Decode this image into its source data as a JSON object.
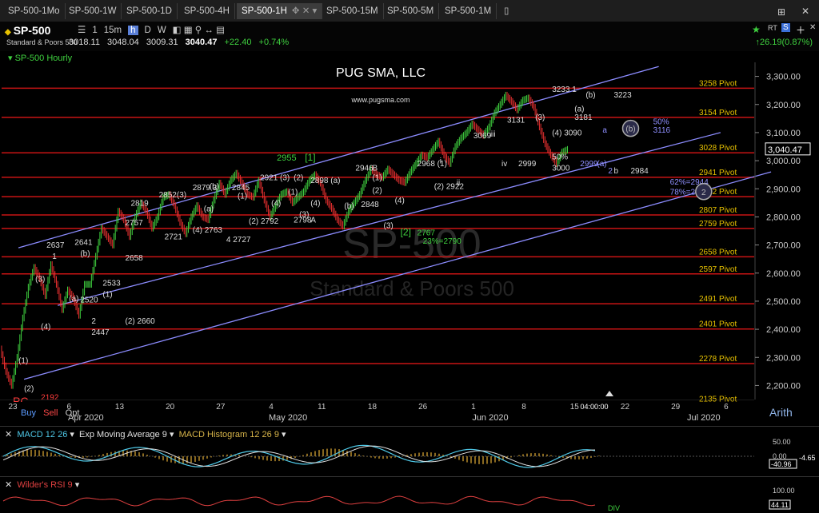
{
  "tabs": [
    {
      "label": "SP-500-1Mo",
      "active": false
    },
    {
      "label": "SP-500-1W",
      "active": false
    },
    {
      "label": "SP-500-1D",
      "active": false
    },
    {
      "label": "SP-500-4H",
      "active": false
    },
    {
      "label": "SP-500-1H",
      "active": true
    },
    {
      "label": "SP-500-15M",
      "active": false
    },
    {
      "label": "SP-500-5M",
      "active": false
    },
    {
      "label": "SP-500-1M",
      "active": false
    }
  ],
  "header": {
    "symbol": "SP-500",
    "fullname": "Standard & Poors 500",
    "intervals": [
      "1",
      "15m",
      "h",
      "D",
      "W"
    ],
    "selected_interval": "h",
    "quote": {
      "open": "3018.11",
      "high": "3048.04",
      "low": "3009.31",
      "last": "3040.47",
      "change": "+22.40",
      "pct": "+0.74%"
    },
    "rt_label": "RT",
    "right_change": "26.19(0.87%)"
  },
  "chart_title_label": "SP-500 Hourly",
  "trade_buttons": {
    "buy": "Buy",
    "sell": "Sell",
    "opt": "Opt"
  },
  "scale_mode": "Arith",
  "chart_data": {
    "type": "line",
    "title": "PUG SMA, LLC",
    "subtitle": "www.pugsma.com",
    "watermark": "SP-500",
    "watermark_sub": "Standard & Poors 500",
    "last_price_label": "3,040.47",
    "ylim": [
      2150,
      3350
    ],
    "xlim": [
      0,
      134
    ],
    "yticks": [
      "2,200.00",
      "2,300.00",
      "2,400.00",
      "2,500.00",
      "2,600.00",
      "2,700.00",
      "2,800.00",
      "2,900.00",
      "3,000.00",
      "3,100.00",
      "3,200.00",
      "3,300.00"
    ],
    "ytick_values": [
      2200,
      2300,
      2400,
      2500,
      2600,
      2700,
      2800,
      2900,
      3000,
      3100,
      3200,
      3300
    ],
    "xticks": [
      {
        "x": 2,
        "label": "23"
      },
      {
        "x": 12,
        "label": "6"
      },
      {
        "x": 21,
        "label": "13"
      },
      {
        "x": 30,
        "label": "20"
      },
      {
        "x": 39,
        "label": "27"
      },
      {
        "x": 48,
        "label": "4"
      },
      {
        "x": 57,
        "label": "11"
      },
      {
        "x": 66,
        "label": "18"
      },
      {
        "x": 75,
        "label": "26"
      },
      {
        "x": 84,
        "label": "1"
      },
      {
        "x": 93,
        "label": "8"
      },
      {
        "x": 102,
        "label": "15"
      },
      {
        "x": 111,
        "label": "22"
      },
      {
        "x": 120,
        "label": "29"
      },
      {
        "x": 129,
        "label": "6"
      }
    ],
    "month_labels": [
      {
        "x": 15,
        "label": "Apr 2020"
      },
      {
        "x": 51,
        "label": "May 2020"
      },
      {
        "x": 87,
        "label": "Jun 2020"
      },
      {
        "x": 125,
        "label": "Jul 2020"
      }
    ],
    "cursor_time": "04:00:00",
    "pivots": [
      {
        "v": 3258,
        "label": "3258 Pivot"
      },
      {
        "v": 3154,
        "label": "3154 Pivot"
      },
      {
        "v": 3028,
        "label": "3028 Pivot"
      },
      {
        "v": 2941,
        "label": "2941 Pivot"
      },
      {
        "v": 2872,
        "label": "2872 Pivot"
      },
      {
        "v": 2807,
        "label": "2807 Pivot"
      },
      {
        "v": 2759,
        "label": "2759 Pivot"
      },
      {
        "v": 2658,
        "label": "2658 Pivot"
      },
      {
        "v": 2597,
        "label": "2597 Pivot"
      },
      {
        "v": 2491,
        "label": "2491 Pivot"
      },
      {
        "v": 2401,
        "label": "2401 Pivot"
      },
      {
        "v": 2278,
        "label": "2278 Pivot"
      },
      {
        "v": 2135,
        "label": "2135 Pivot"
      }
    ],
    "channel_lines": [
      {
        "x1": 3,
        "y1": 2690,
        "x2": 117,
        "y2": 3335
      },
      {
        "x1": 10,
        "y1": 2485,
        "x2": 128,
        "y2": 3100
      },
      {
        "x1": 4,
        "y1": 2222,
        "x2": 137,
        "y2": 2960
      }
    ],
    "price_path": [
      [
        0,
        2330
      ],
      [
        1,
        2250
      ],
      [
        2,
        2200
      ],
      [
        3,
        2300
      ],
      [
        4,
        2440
      ],
      [
        5,
        2550
      ],
      [
        6,
        2620
      ],
      [
        7,
        2580
      ],
      [
        8,
        2520
      ],
      [
        9,
        2630
      ],
      [
        10,
        2560
      ],
      [
        11,
        2470
      ],
      [
        12,
        2540
      ],
      [
        13,
        2510
      ],
      [
        14,
        2450
      ],
      [
        15,
        2560
      ],
      [
        16,
        2560
      ],
      [
        17,
        2660
      ],
      [
        18,
        2760
      ],
      [
        19,
        2730
      ],
      [
        20,
        2700
      ],
      [
        21,
        2820
      ],
      [
        22,
        2790
      ],
      [
        23,
        2730
      ],
      [
        24,
        2800
      ],
      [
        25,
        2850
      ],
      [
        26,
        2820
      ],
      [
        27,
        2760
      ],
      [
        28,
        2800
      ],
      [
        29,
        2870
      ],
      [
        30,
        2880
      ],
      [
        31,
        2840
      ],
      [
        32,
        2780
      ],
      [
        33,
        2740
      ],
      [
        34,
        2800
      ],
      [
        35,
        2840
      ],
      [
        36,
        2800
      ],
      [
        37,
        2790
      ],
      [
        38,
        2860
      ],
      [
        39,
        2920
      ],
      [
        40,
        2880
      ],
      [
        41,
        2930
      ],
      [
        42,
        2955
      ],
      [
        43,
        2920
      ],
      [
        44,
        2880
      ],
      [
        45,
        2870
      ],
      [
        46,
        2930
      ],
      [
        47,
        2860
      ],
      [
        48,
        2800
      ],
      [
        49,
        2840
      ],
      [
        50,
        2880
      ],
      [
        51,
        2890
      ],
      [
        52,
        2850
      ],
      [
        53,
        2870
      ],
      [
        54,
        2890
      ],
      [
        55,
        2930
      ],
      [
        56,
        2950
      ],
      [
        57,
        2920
      ],
      [
        58,
        2860
      ],
      [
        59,
        2830
      ],
      [
        60,
        2790
      ],
      [
        61,
        2767
      ],
      [
        62,
        2820
      ],
      [
        63,
        2850
      ],
      [
        64,
        2880
      ],
      [
        65,
        2930
      ],
      [
        66,
        2970
      ],
      [
        67,
        2950
      ],
      [
        68,
        2940
      ],
      [
        69,
        2970
      ],
      [
        70,
        2950
      ],
      [
        71,
        2930
      ],
      [
        72,
        2922
      ],
      [
        73,
        2960
      ],
      [
        74,
        2990
      ],
      [
        75,
        3020
      ],
      [
        76,
        3010
      ],
      [
        77,
        3040
      ],
      [
        78,
        3069
      ],
      [
        79,
        3020
      ],
      [
        80,
        2990
      ],
      [
        81,
        3050
      ],
      [
        82,
        3080
      ],
      [
        83,
        3100
      ],
      [
        84,
        3131
      ],
      [
        85,
        3110
      ],
      [
        86,
        3090
      ],
      [
        87,
        3120
      ],
      [
        88,
        3170
      ],
      [
        89,
        3200
      ],
      [
        90,
        3233
      ],
      [
        91,
        3210
      ],
      [
        92,
        3181
      ],
      [
        93,
        3215
      ],
      [
        94,
        3223
      ],
      [
        95,
        3190
      ],
      [
        96,
        3120
      ],
      [
        97,
        3060
      ],
      [
        98,
        3020
      ],
      [
        99,
        2990
      ],
      [
        100,
        3030
      ],
      [
        101,
        3040
      ]
    ],
    "annotations": [
      {
        "x": 2,
        "y": 2130,
        "text": "PC",
        "color": "#ff3b3b",
        "size": 14
      },
      {
        "x": 7,
        "y": 2148,
        "text": "2192",
        "color": "#ff3b3b",
        "size": 10
      },
      {
        "x": 4,
        "y": 2180,
        "text": "(2)",
        "color": "#ddd"
      },
      {
        "x": 3,
        "y": 2280,
        "text": "(1)",
        "color": "#ddd"
      },
      {
        "x": 7,
        "y": 2400,
        "text": "(4)",
        "color": "#ddd"
      },
      {
        "x": 6,
        "y": 2570,
        "text": "(3)",
        "color": "#ddd"
      },
      {
        "x": 8,
        "y": 2690,
        "text": "2637",
        "color": "#ddd"
      },
      {
        "x": 9,
        "y": 2650,
        "text": "1",
        "color": "#ddd"
      },
      {
        "x": 12,
        "y": 2500,
        "text": "(a)",
        "color": "#ddd"
      },
      {
        "x": 14,
        "y": 2495,
        "text": "2520",
        "color": "#ddd"
      },
      {
        "x": 13,
        "y": 2700,
        "text": "2641",
        "color": "#ddd"
      },
      {
        "x": 14,
        "y": 2660,
        "text": "(b)",
        "color": "#ddd"
      },
      {
        "x": 18,
        "y": 2555,
        "text": "2533",
        "color": "#ddd"
      },
      {
        "x": 18,
        "y": 2515,
        "text": "(1)",
        "color": "#ddd"
      },
      {
        "x": 16,
        "y": 2420,
        "text": "2",
        "color": "#ddd"
      },
      {
        "x": 16,
        "y": 2380,
        "text": "2447",
        "color": "#ddd"
      },
      {
        "x": 22,
        "y": 2420,
        "text": "(2) 2660",
        "color": "#ddd"
      },
      {
        "x": 22,
        "y": 2645,
        "text": "2658",
        "color": "#ddd"
      },
      {
        "x": 22,
        "y": 2770,
        "text": "2757",
        "color": "#ddd"
      },
      {
        "x": 23,
        "y": 2840,
        "text": "2819",
        "color": "#ddd"
      },
      {
        "x": 28,
        "y": 2870,
        "text": "2852(3)",
        "color": "#ddd"
      },
      {
        "x": 34,
        "y": 2895,
        "text": "2879 3",
        "color": "#ddd"
      },
      {
        "x": 37,
        "y": 2900,
        "text": "(b)",
        "color": "#ddd"
      },
      {
        "x": 29,
        "y": 2720,
        "text": "2721",
        "color": "#ddd"
      },
      {
        "x": 34,
        "y": 2745,
        "text": "(4) 2763",
        "color": "#ddd"
      },
      {
        "x": 36,
        "y": 2820,
        "text": "(a)",
        "color": "#ddd"
      },
      {
        "x": 40,
        "y": 2710,
        "text": "4  2727",
        "color": "#ddd"
      },
      {
        "x": 42,
        "y": 2865,
        "text": "(1)",
        "color": "#ddd"
      },
      {
        "x": 41,
        "y": 2895,
        "text": "2845",
        "color": "#ddd"
      },
      {
        "x": 46,
        "y": 2930,
        "text": "2921 (3)",
        "color": "#ddd"
      },
      {
        "x": 44,
        "y": 2775,
        "text": "(2) 2792",
        "color": "#ddd"
      },
      {
        "x": 48,
        "y": 2840,
        "text": "(4)",
        "color": "#ddd"
      },
      {
        "x": 49,
        "y": 3000,
        "text": "2955",
        "color": "#3fd13f",
        "size": 11
      },
      {
        "x": 54,
        "y": 3000,
        "text": "[1]",
        "color": "#3fd13f",
        "size": 12
      },
      {
        "x": 52,
        "y": 2930,
        "text": "(2)",
        "color": "#ddd"
      },
      {
        "x": 51,
        "y": 2880,
        "text": "(1)",
        "color": "#ddd"
      },
      {
        "x": 55,
        "y": 2920,
        "text": "2898 (a)",
        "color": "#ddd"
      },
      {
        "x": 55,
        "y": 2840,
        "text": "(4)",
        "color": "#ddd"
      },
      {
        "x": 52,
        "y": 2780,
        "text": "2798",
        "color": "#ddd"
      },
      {
        "x": 55,
        "y": 2780,
        "text": "A",
        "color": "#ddd"
      },
      {
        "x": 53,
        "y": 2800,
        "text": "(3)",
        "color": "#ddd"
      },
      {
        "x": 61,
        "y": 2830,
        "text": "(b)",
        "color": "#ddd"
      },
      {
        "x": 64,
        "y": 2835,
        "text": "2848",
        "color": "#ddd"
      },
      {
        "x": 63,
        "y": 2965,
        "text": "2946",
        "color": "#ddd"
      },
      {
        "x": 66,
        "y": 2965,
        "text": "B",
        "color": "#ddd"
      },
      {
        "x": 66,
        "y": 2930,
        "text": "(1)",
        "color": "#ddd"
      },
      {
        "x": 66,
        "y": 2885,
        "text": "(2)",
        "color": "#ddd"
      },
      {
        "x": 70,
        "y": 2850,
        "text": "(4)",
        "color": "#ddd"
      },
      {
        "x": 68,
        "y": 2760,
        "text": "(3)",
        "color": "#ddd"
      },
      {
        "x": 71,
        "y": 2735,
        "text": "[2]",
        "color": "#3fd13f",
        "size": 12
      },
      {
        "x": 74,
        "y": 2735,
        "text": "2767",
        "color": "#3fd13f"
      },
      {
        "x": 75,
        "y": 2705,
        "text": "23%=2790",
        "color": "#3fd13f"
      },
      {
        "x": 74,
        "y": 2980,
        "text": "2968 (1)",
        "color": "#ddd"
      },
      {
        "x": 78,
        "y": 2990,
        "text": "i",
        "color": "#ddd"
      },
      {
        "x": 77,
        "y": 2900,
        "text": "(2) 2922",
        "color": "#ddd"
      },
      {
        "x": 81,
        "y": 2912,
        "text": "ii",
        "color": "#ddd"
      },
      {
        "x": 84,
        "y": 3080,
        "text": "3069",
        "color": "#ddd"
      },
      {
        "x": 87,
        "y": 3085,
        "text": "iii",
        "color": "#ddd"
      },
      {
        "x": 90,
        "y": 3135,
        "text": "3131",
        "color": "#ddd"
      },
      {
        "x": 95,
        "y": 3145,
        "text": "(3)",
        "color": "#ddd"
      },
      {
        "x": 89,
        "y": 2980,
        "text": "iv",
        "color": "#ddd"
      },
      {
        "x": 92,
        "y": 2980,
        "text": "2999",
        "color": "#ddd"
      },
      {
        "x": 98,
        "y": 3090,
        "text": "(4) 3090",
        "color": "#ddd"
      },
      {
        "x": 98,
        "y": 3005,
        "text": "50%",
        "color": "#ddd"
      },
      {
        "x": 98,
        "y": 2965,
        "text": "3000",
        "color": "#ddd"
      },
      {
        "x": 98,
        "y": 3245,
        "text": "3233 1",
        "color": "#ddd"
      },
      {
        "x": 102,
        "y": 3175,
        "text": "(a)",
        "color": "#ddd"
      },
      {
        "x": 102,
        "y": 3145,
        "text": "3181",
        "color": "#ddd"
      },
      {
        "x": 104,
        "y": 3225,
        "text": "(b)",
        "color": "#ddd"
      },
      {
        "x": 109,
        "y": 3225,
        "text": "3223",
        "color": "#ddd"
      },
      {
        "x": 107,
        "y": 3100,
        "text": "a",
        "color": "#8f8fff"
      },
      {
        "x": 106,
        "y": 2980,
        "text": "(a)",
        "color": "#8f8fff"
      },
      {
        "x": 103,
        "y": 2980,
        "text": "2999",
        "color": "#8f8fff"
      },
      {
        "x": 108,
        "y": 2955,
        "text": "2",
        "color": "#8f8fff"
      },
      {
        "x": 109,
        "y": 2955,
        "text": "b",
        "color": "#ddd"
      },
      {
        "x": 112,
        "y": 2955,
        "text": "2984",
        "color": "#ddd"
      },
      {
        "x": 116,
        "y": 3130,
        "text": "50%",
        "color": "#8f8fff"
      },
      {
        "x": 116,
        "y": 3100,
        "text": "3116",
        "color": "#8f8fff"
      },
      {
        "x": 119,
        "y": 2915,
        "text": "62%=2944",
        "color": "#8f8fff"
      },
      {
        "x": 119,
        "y": 2880,
        "text": "78%=2870",
        "color": "#8f8fff"
      }
    ],
    "circle_markers": [
      {
        "x": 112,
        "y": 3115,
        "text": "(b)"
      },
      {
        "x": 125,
        "y": 2890,
        "text": "2"
      }
    ]
  },
  "macd": {
    "labels": {
      "macd": "MACD 12 26",
      "ema": "Exp Moving Average 9",
      "hist": "MACD Histogram 12 26 9"
    },
    "yticks": [
      "50.00",
      "0.00",
      "-50.00"
    ],
    "last_value": "-40.96",
    "right_value": "-4.65"
  },
  "rsi": {
    "label": "Wilder's RSI 9",
    "yticks": [
      "100.00"
    ],
    "last_value": "44.11",
    "div_label": "DIV"
  },
  "colors": {
    "pivot": "#c81414",
    "channel": "#8c8cff",
    "up_bar": "#3fd13f",
    "down_bar": "#e83030"
  }
}
